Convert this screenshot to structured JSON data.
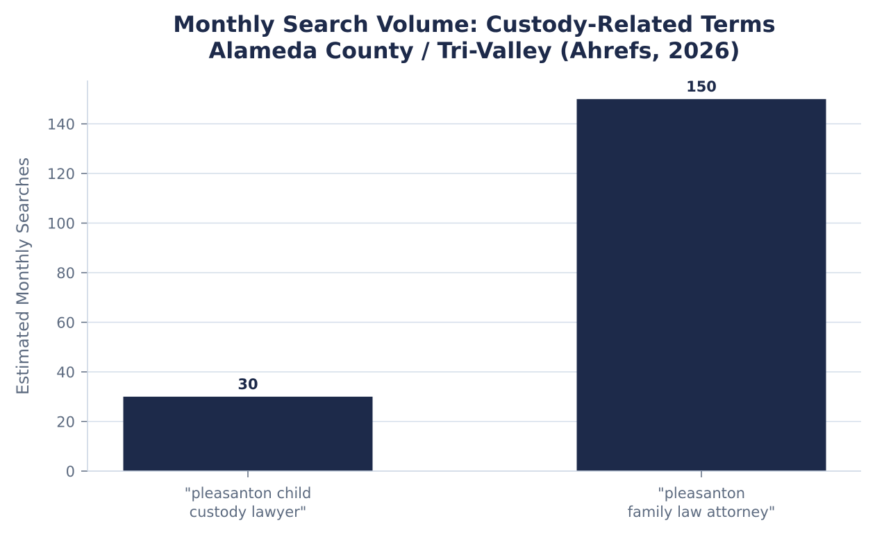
{
  "chart_data": {
    "type": "bar",
    "title_lines": [
      "Monthly Search Volume: Custody-Related Terms",
      "Alameda County / Tri-Valley (Ahrefs, 2026)"
    ],
    "xlabel": "",
    "ylabel": "Estimated Monthly Searches",
    "categories": [
      [
        "\"pleasanton child",
        "custody lawyer\""
      ],
      [
        "\"pleasanton",
        "family law attorney\""
      ]
    ],
    "values": [
      30,
      150
    ],
    "data_labels": [
      "30",
      "150"
    ],
    "ylim": [
      0,
      157.5
    ],
    "yticks": [
      0,
      20,
      40,
      60,
      80,
      100,
      120,
      140
    ],
    "grid": "horizontal",
    "legend": "none",
    "colors": {
      "bar": "#1d2a4a",
      "grid": "#d3dde9",
      "axis": "#c9d4e2",
      "text": "#5d6b80",
      "title": "#1d2a4a"
    }
  }
}
